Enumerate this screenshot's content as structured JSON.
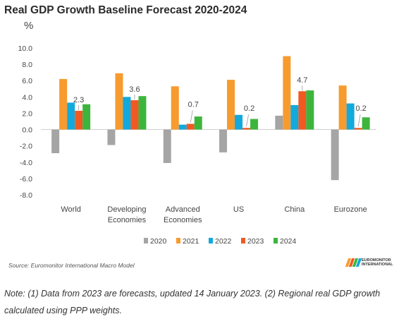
{
  "title": "Real GDP Growth Baseline Forecast 2020-2024",
  "unit_label": "%",
  "chart_data": {
    "type": "bar",
    "categories": [
      [
        "World"
      ],
      [
        "Developing",
        "Economies"
      ],
      [
        "Advanced",
        "Economies"
      ],
      [
        "US"
      ],
      [
        "China"
      ],
      [
        "Eurozone"
      ]
    ],
    "y_ticks": [
      "10.0",
      "8.0",
      "6.0",
      "4.0",
      "2.0",
      "0.0",
      "-2.0",
      "-4.0",
      "-6.0",
      "-8.0"
    ],
    "ylim": [
      -8,
      10
    ],
    "series": [
      {
        "name": "2020",
        "color": "#a5a5a5",
        "values": [
          -2.9,
          -1.9,
          -4.1,
          -2.8,
          1.7,
          -6.2
        ]
      },
      {
        "name": "2021",
        "color": "#f79b2e",
        "values": [
          6.2,
          6.9,
          5.3,
          6.1,
          9.0,
          5.4
        ]
      },
      {
        "name": "2022",
        "color": "#12a9dd",
        "values": [
          3.3,
          4.0,
          0.6,
          1.8,
          3.0,
          3.2
        ]
      },
      {
        "name": "2023",
        "color": "#f05a22",
        "values": [
          2.3,
          3.6,
          0.7,
          0.2,
          4.7,
          0.2
        ]
      },
      {
        "name": "2024",
        "color": "#3db53d",
        "values": [
          3.1,
          4.1,
          1.6,
          1.3,
          4.8,
          1.5
        ]
      }
    ],
    "annotations": [
      "2.3",
      "3.6",
      "0.7",
      "0.2",
      "4.7",
      "0.2"
    ],
    "annotated_series": "2023",
    "legend_position": "bottom",
    "grid": false
  },
  "source": "Source: Euromonitor International Macro Model",
  "logo": {
    "line1": "EUROMONITOR",
    "line2": "INTERNATIONAL",
    "colors": [
      "#f79b2e",
      "#f05a22",
      "#3db53d",
      "#12a9dd"
    ]
  },
  "note": "Note: (1) Data from 2023 are forecasts, updated 14 January 2023. (2) Regional real GDP growth calculated using PPP weights."
}
